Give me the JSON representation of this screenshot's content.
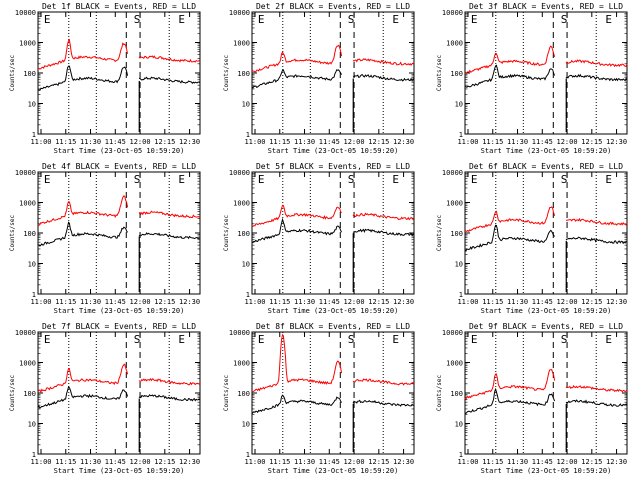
{
  "chart_data": [
    {
      "type": "line",
      "title": "Det 1f BLACK = Events, RED = LLD",
      "xlabel": "Start Time (23-Oct-05 10:59:20)",
      "ylabel": "Counts/sec",
      "yscale": "log",
      "ylim": [
        1,
        10000
      ],
      "x_ticks": [
        "11:00",
        "11:15",
        "11:30",
        "11:45",
        "12:00",
        "12:15",
        "12:30"
      ],
      "y_ticks": [
        "1",
        "10",
        "100",
        "1000",
        "10000"
      ],
      "markers": {
        "E_left": "E",
        "S": "S",
        "E_right": "E"
      },
      "series": [
        {
          "color": "#ff0000",
          "base": 250,
          "spike": 1200,
          "center_peak": 900
        },
        {
          "color": "#000000",
          "base": 50,
          "spike": 180,
          "center_peak": 150
        }
      ]
    },
    {
      "type": "line",
      "title": "Det 2f BLACK = Events, RED = LLD",
      "xlabel": "Start Time (23-Oct-05 10:59:20)",
      "ylabel": "Counts/sec",
      "yscale": "log",
      "ylim": [
        1,
        10000
      ],
      "x_ticks": [
        "11:00",
        "11:15",
        "11:30",
        "11:45",
        "12:00",
        "12:15",
        "12:30"
      ],
      "y_ticks": [
        "1",
        "10",
        "100",
        "1000",
        "10000"
      ],
      "markers": {
        "E_left": "E",
        "S": "S",
        "E_right": "E"
      },
      "series": [
        {
          "color": "#ff0000",
          "base": 200,
          "spike": 450,
          "center_peak": 800
        },
        {
          "color": "#000000",
          "base": 60,
          "spike": 120,
          "center_peak": 120
        }
      ]
    },
    {
      "type": "line",
      "title": "Det 3f BLACK = Events, RED = LLD",
      "xlabel": "Start Time (23-Oct-05 10:59:20)",
      "ylabel": "Counts/sec",
      "yscale": "log",
      "ylim": [
        1,
        10000
      ],
      "x_ticks": [
        "11:00",
        "11:15",
        "11:30",
        "11:45",
        "12:00",
        "12:15",
        "12:30"
      ],
      "y_ticks": [
        "1",
        "10",
        "100",
        "1000",
        "10000"
      ],
      "markers": {
        "E_left": "E",
        "S": "S",
        "E_right": "E"
      },
      "series": [
        {
          "color": "#ff0000",
          "base": 180,
          "spike": 450,
          "center_peak": 700
        },
        {
          "color": "#000000",
          "base": 60,
          "spike": 180,
          "center_peak": 130
        }
      ]
    },
    {
      "type": "line",
      "title": "Det 4f BLACK = Events, RED = LLD",
      "xlabel": "Start Time (23-Oct-05 10:59:20)",
      "ylabel": "Counts/sec",
      "yscale": "log",
      "ylim": [
        1,
        10000
      ],
      "x_ticks": [
        "11:00",
        "11:15",
        "11:30",
        "11:45",
        "12:00",
        "12:15",
        "12:30"
      ],
      "y_ticks": [
        "1",
        "10",
        "100",
        "1000",
        "10000"
      ],
      "markers": {
        "E_left": "E",
        "S": "S",
        "E_right": "E"
      },
      "series": [
        {
          "color": "#ff0000",
          "base": 350,
          "spike": 1000,
          "center_peak": 1500
        },
        {
          "color": "#000000",
          "base": 70,
          "spike": 200,
          "center_peak": 150
        }
      ]
    },
    {
      "type": "line",
      "title": "Det 5f BLACK = Events, RED = LLD",
      "xlabel": "Start Time (23-Oct-05 10:59:20)",
      "ylabel": "Counts/sec",
      "yscale": "log",
      "ylim": [
        1,
        10000
      ],
      "x_ticks": [
        "11:00",
        "11:15",
        "11:30",
        "11:45",
        "12:00",
        "12:15",
        "12:30"
      ],
      "y_ticks": [
        "1",
        "10",
        "100",
        "1000",
        "10000"
      ],
      "markers": {
        "E_left": "E",
        "S": "S",
        "E_right": "E"
      },
      "series": [
        {
          "color": "#ff0000",
          "base": 300,
          "spike": 800,
          "center_peak": 700
        },
        {
          "color": "#000000",
          "base": 90,
          "spike": 250,
          "center_peak": 150
        }
      ]
    },
    {
      "type": "line",
      "title": "Det 6f BLACK = Events, RED = LLD",
      "xlabel": "Start Time (23-Oct-05 10:59:20)",
      "ylabel": "Counts/sec",
      "yscale": "log",
      "ylim": [
        1,
        10000
      ],
      "x_ticks": [
        "11:00",
        "11:15",
        "11:30",
        "11:45",
        "12:00",
        "12:15",
        "12:30"
      ],
      "y_ticks": [
        "1",
        "10",
        "100",
        "1000",
        "10000"
      ],
      "markers": {
        "E_left": "E",
        "S": "S",
        "E_right": "E"
      },
      "series": [
        {
          "color": "#ff0000",
          "base": 200,
          "spike": 500,
          "center_peak": 700
        },
        {
          "color": "#000000",
          "base": 50,
          "spike": 180,
          "center_peak": 110
        }
      ]
    },
    {
      "type": "line",
      "title": "Det 7f BLACK = Events, RED = LLD",
      "xlabel": "Start Time (23-Oct-05 10:59:20)",
      "ylabel": "Counts/sec",
      "yscale": "log",
      "ylim": [
        1,
        10000
      ],
      "x_ticks": [
        "11:00",
        "11:15",
        "11:30",
        "11:45",
        "12:00",
        "12:15",
        "12:30"
      ],
      "y_ticks": [
        "1",
        "10",
        "100",
        "1000",
        "10000"
      ],
      "markers": {
        "E_left": "E",
        "S": "S",
        "E_right": "E"
      },
      "series": [
        {
          "color": "#ff0000",
          "base": 200,
          "spike": 600,
          "center_peak": 800
        },
        {
          "color": "#000000",
          "base": 60,
          "spike": 150,
          "center_peak": 120
        }
      ]
    },
    {
      "type": "line",
      "title": "Det 8f BLACK = Events, RED = LLD",
      "xlabel": "Start Time (23-Oct-05 10:59:20)",
      "ylabel": "Counts/sec",
      "yscale": "log",
      "ylim": [
        1,
        10000
      ],
      "x_ticks": [
        "11:00",
        "11:15",
        "11:30",
        "11:45",
        "12:00",
        "12:15",
        "12:30"
      ],
      "y_ticks": [
        "1",
        "10",
        "100",
        "1000",
        "10000"
      ],
      "markers": {
        "E_left": "E",
        "S": "S",
        "E_right": "E"
      },
      "series": [
        {
          "color": "#ff0000",
          "base": 200,
          "spike": 8000,
          "center_peak": 1000
        },
        {
          "color": "#000000",
          "base": 40,
          "spike": 80,
          "center_peak": 70
        }
      ]
    },
    {
      "type": "line",
      "title": "Det 9f BLACK = Events, RED = LLD",
      "xlabel": "Start Time (23-Oct-05 10:59:20)",
      "ylabel": "Counts/sec",
      "yscale": "log",
      "ylim": [
        1,
        10000
      ],
      "x_ticks": [
        "11:00",
        "11:15",
        "11:30",
        "11:45",
        "12:00",
        "12:15",
        "12:30"
      ],
      "y_ticks": [
        "1",
        "10",
        "100",
        "1000",
        "10000"
      ],
      "markers": {
        "E_left": "E",
        "S": "S",
        "E_right": "E"
      },
      "series": [
        {
          "color": "#ff0000",
          "base": 120,
          "spike": 400,
          "center_peak": 600
        },
        {
          "color": "#000000",
          "base": 40,
          "spike": 120,
          "center_peak": 90
        }
      ]
    }
  ]
}
